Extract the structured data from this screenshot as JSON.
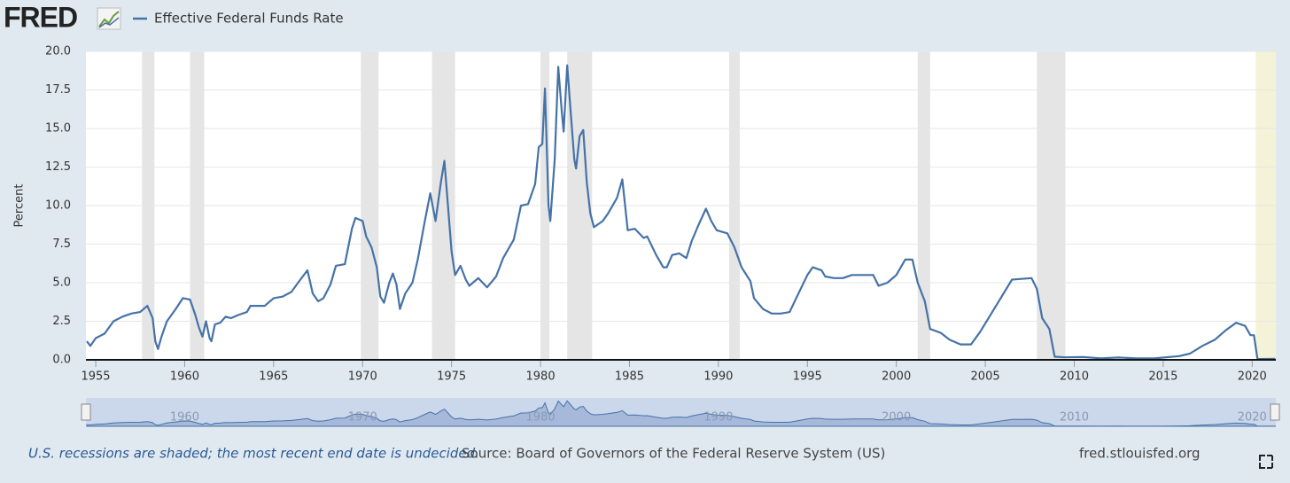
{
  "logo": "FRED",
  "chart_data": {
    "type": "line",
    "title": "Effective Federal Funds Rate",
    "ylabel": "Percent",
    "x": [
      1954.5,
      1954.7,
      1955.0,
      1955.5,
      1956.0,
      1956.5,
      1957.0,
      1957.5,
      1957.9,
      1958.2,
      1958.35,
      1958.5,
      1958.7,
      1959.0,
      1959.5,
      1959.9,
      1960.3,
      1960.6,
      1960.8,
      1961.0,
      1961.2,
      1961.4,
      1961.5,
      1961.7,
      1962.0,
      1962.3,
      1962.6,
      1963.0,
      1963.5,
      1963.7,
      1964.0,
      1964.5,
      1965.0,
      1965.5,
      1966.0,
      1966.5,
      1966.9,
      1967.2,
      1967.5,
      1967.8,
      1968.2,
      1968.5,
      1969.0,
      1969.4,
      1969.6,
      1970.0,
      1970.2,
      1970.5,
      1970.8,
      1971.0,
      1971.2,
      1971.5,
      1971.7,
      1971.9,
      1972.1,
      1972.4,
      1972.8,
      1973.1,
      1973.5,
      1973.8,
      1974.1,
      1974.4,
      1974.6,
      1974.8,
      1975.0,
      1975.2,
      1975.5,
      1975.8,
      1976.0,
      1976.5,
      1977.0,
      1977.5,
      1977.9,
      1978.5,
      1978.9,
      1979.3,
      1979.7,
      1979.9,
      1980.1,
      1980.25,
      1980.45,
      1980.55,
      1980.8,
      1981.0,
      1981.2,
      1981.3,
      1981.5,
      1981.7,
      1981.9,
      1982.0,
      1982.2,
      1982.4,
      1982.6,
      1982.8,
      1983.0,
      1983.5,
      1983.8,
      1984.3,
      1984.6,
      1984.9,
      1985.3,
      1985.8,
      1986.0,
      1986.5,
      1986.9,
      1987.1,
      1987.4,
      1987.8,
      1988.2,
      1988.5,
      1988.9,
      1989.3,
      1989.6,
      1989.9,
      1990.5,
      1990.9,
      1991.3,
      1991.8,
      1992.0,
      1992.5,
      1993.0,
      1993.5,
      1994.0,
      1994.5,
      1995.0,
      1995.3,
      1995.8,
      1996.0,
      1996.5,
      1997.0,
      1997.5,
      1998.0,
      1998.7,
      1999.0,
      1999.5,
      2000.0,
      2000.5,
      2000.9,
      2001.2,
      2001.6,
      2001.9,
      2002.5,
      2003.0,
      2003.6,
      2004.2,
      2004.7,
      2005.5,
      2006.5,
      2007.6,
      2007.9,
      2008.2,
      2008.6,
      2008.9,
      2009.5,
      2010.5,
      2011.5,
      2012.5,
      2013.5,
      2014.5,
      2015.9,
      2016.5,
      2017.2,
      2017.9,
      2018.5,
      2019.1,
      2019.6,
      2019.9,
      2020.1,
      2020.3,
      2021.3
    ],
    "series": [
      {
        "name": "Effective Federal Funds Rate",
        "color": "#4572a7",
        "values": [
          1.2,
          0.9,
          1.4,
          1.7,
          2.5,
          2.8,
          3.0,
          3.1,
          3.5,
          2.7,
          1.2,
          0.7,
          1.5,
          2.5,
          3.3,
          4.0,
          3.9,
          2.9,
          2.1,
          1.5,
          2.5,
          1.4,
          1.2,
          2.3,
          2.4,
          2.8,
          2.7,
          2.9,
          3.1,
          3.5,
          3.5,
          3.5,
          4.0,
          4.1,
          4.4,
          5.2,
          5.8,
          4.3,
          3.8,
          4.0,
          4.9,
          6.1,
          6.2,
          8.5,
          9.2,
          9.0,
          8.0,
          7.3,
          6.0,
          4.1,
          3.7,
          5.0,
          5.6,
          4.9,
          3.3,
          4.3,
          5.0,
          6.5,
          9.0,
          10.8,
          9.0,
          11.5,
          12.9,
          10.0,
          7.0,
          5.5,
          6.1,
          5.2,
          4.8,
          5.3,
          4.7,
          5.4,
          6.6,
          7.8,
          10.0,
          10.1,
          11.4,
          13.8,
          14.0,
          17.6,
          10.0,
          9.0,
          13.0,
          19.0,
          16.0,
          14.8,
          19.1,
          16.0,
          13.0,
          12.4,
          14.5,
          14.9,
          11.5,
          9.5,
          8.6,
          9.0,
          9.5,
          10.5,
          11.7,
          8.4,
          8.5,
          7.9,
          8.0,
          6.8,
          6.0,
          6.0,
          6.8,
          6.9,
          6.6,
          7.7,
          8.8,
          9.8,
          9.0,
          8.4,
          8.2,
          7.3,
          6.0,
          5.1,
          4.0,
          3.3,
          3.0,
          3.0,
          3.1,
          4.3,
          5.5,
          6.0,
          5.8,
          5.4,
          5.3,
          5.3,
          5.5,
          5.5,
          5.5,
          4.8,
          5.0,
          5.5,
          6.5,
          6.5,
          5.0,
          3.8,
          2.0,
          1.75,
          1.3,
          1.0,
          1.0,
          1.8,
          3.3,
          5.2,
          5.3,
          4.6,
          2.7,
          2.0,
          0.2,
          0.16,
          0.18,
          0.1,
          0.15,
          0.09,
          0.09,
          0.24,
          0.4,
          0.9,
          1.3,
          1.9,
          2.4,
          2.2,
          1.6,
          1.6,
          0.05,
          0.07
        ]
      }
    ],
    "xlim": [
      1954.45,
      2021.33
    ],
    "xticks": [
      1955,
      1960,
      1965,
      1970,
      1975,
      1980,
      1985,
      1990,
      1995,
      2000,
      2005,
      2010,
      2015,
      2020
    ],
    "ylim": [
      0,
      20
    ],
    "yticks": [
      {
        "value": 0,
        "label": "0.0"
      },
      2.5,
      {
        "value": 5,
        "label": "5.0"
      },
      7.5,
      {
        "value": 10,
        "label": "10.0"
      },
      12.5,
      {
        "value": 15,
        "label": "15.0"
      },
      17.5,
      {
        "value": 20,
        "label": "20.0"
      }
    ],
    "grid": true,
    "recessions": [
      [
        1957.6,
        1958.3
      ],
      [
        1960.3,
        1961.1
      ],
      [
        1969.9,
        1970.9
      ],
      [
        1973.9,
        1975.2
      ],
      [
        1980.0,
        1980.5
      ],
      [
        1981.5,
        1982.9
      ],
      [
        1990.6,
        1991.2
      ],
      [
        2001.2,
        2001.9
      ],
      [
        2007.9,
        2009.5
      ],
      [
        2020.2,
        null
      ]
    ],
    "recession_color": "#e5e5e5",
    "undecided_color": "#f5f3d7",
    "navigator_xticks": [
      1960,
      1970,
      1980,
      1990,
      2000,
      2010,
      2020
    ],
    "recession_note": "U.S. recessions are shaded; the most recent end date is undecided.",
    "source": "Source: Board of Governors of the Federal Reserve System (US)",
    "site": "fred.stlouisfed.org"
  }
}
